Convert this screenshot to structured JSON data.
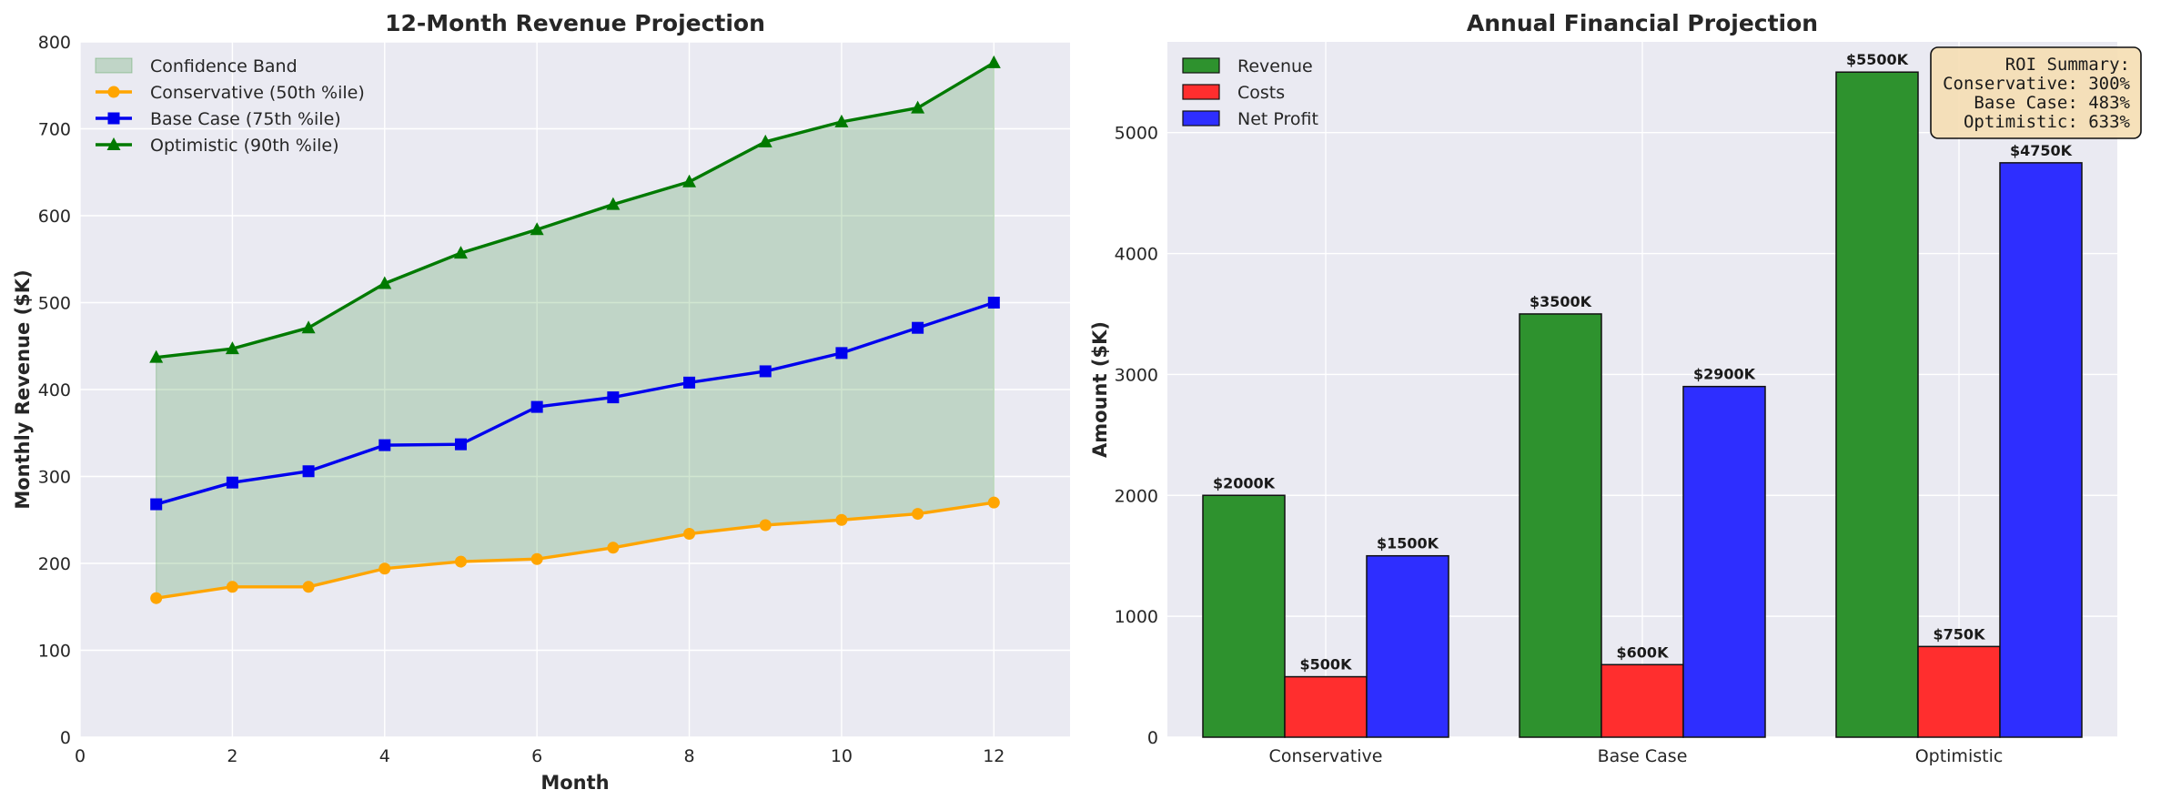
{
  "chart_data": [
    {
      "type": "line",
      "title": "12-Month Revenue Projection",
      "xlabel": "Month",
      "ylabel": "Monthly Revenue ($K)",
      "xlim": [
        0,
        13
      ],
      "ylim": [
        0,
        800
      ],
      "xticks": [
        0,
        2,
        4,
        6,
        8,
        10,
        12
      ],
      "yticks": [
        0,
        100,
        200,
        300,
        400,
        500,
        600,
        700,
        800
      ],
      "grid": true,
      "legend_position": "top-left",
      "x": [
        1,
        2,
        3,
        4,
        5,
        6,
        7,
        8,
        9,
        10,
        11,
        12
      ],
      "band": {
        "name": "Confidence Band",
        "color": "#2e8b2e",
        "lower_series": "Conservative (50th %ile)",
        "upper_series": "Optimistic (90th %ile)"
      },
      "series": [
        {
          "name": "Conservative (50th %ile)",
          "color": "#ffa500",
          "marker": "circle",
          "values": [
            160,
            173,
            173,
            194,
            202,
            205,
            218,
            234,
            244,
            250,
            257,
            270
          ]
        },
        {
          "name": "Base Case (75th %ile)",
          "color": "#0000ee",
          "marker": "square",
          "values": [
            268,
            293,
            306,
            336,
            337,
            380,
            391,
            408,
            421,
            442,
            471,
            500
          ]
        },
        {
          "name": "Optimistic (90th %ile)",
          "color": "#007a00",
          "marker": "triangle",
          "values": [
            437,
            447,
            471,
            522,
            557,
            584,
            613,
            639,
            685,
            708,
            724,
            776
          ]
        }
      ]
    },
    {
      "type": "bar",
      "title": "Annual Financial Projection",
      "xlabel": "",
      "ylabel": "Amount ($K)",
      "ylim": [
        0,
        5750
      ],
      "yticks": [
        0,
        1000,
        2000,
        3000,
        4000,
        5000
      ],
      "grid": true,
      "legend_position": "top-left",
      "categories": [
        "Conservative",
        "Base Case",
        "Optimistic"
      ],
      "series": [
        {
          "name": "Revenue",
          "color": "#2e922e",
          "values": [
            2000,
            3500,
            5500
          ],
          "labels": [
            "$2000K",
            "$3500K",
            "$5500K"
          ]
        },
        {
          "name": "Costs",
          "color": "#ff2e2e",
          "values": [
            500,
            600,
            750
          ],
          "labels": [
            "$500K",
            "$600K",
            "$750K"
          ]
        },
        {
          "name": "Net Profit",
          "color": "#2e2eff",
          "values": [
            1500,
            2900,
            4750
          ],
          "labels": [
            "$1500K",
            "$2900K",
            "$4750K"
          ]
        }
      ],
      "annotation": {
        "lines": [
          "ROI Summary:",
          "Conservative: 300%",
          "Base Case: 483%",
          "Optimistic: 633%"
        ],
        "position": "top-right",
        "background": "#f5deb3"
      }
    }
  ]
}
